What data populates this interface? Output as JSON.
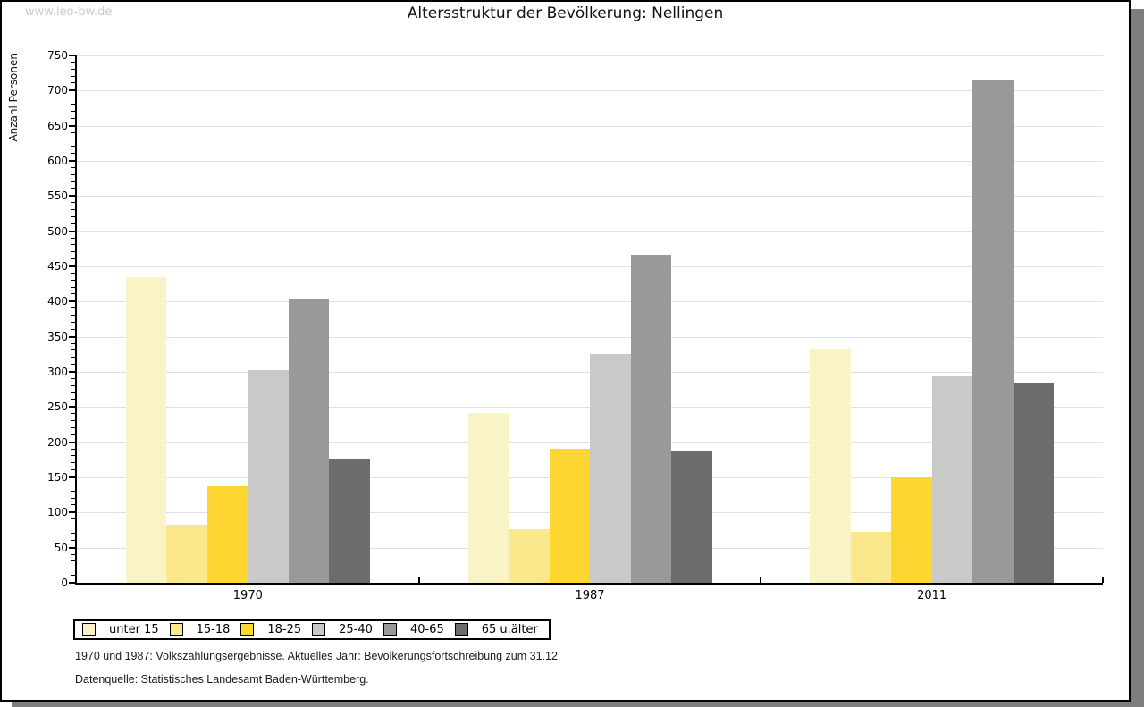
{
  "watermark": "www.leo-bw.de",
  "header": {
    "title": "Altersstruktur der Bevölkerung: Nellingen"
  },
  "chart_data": {
    "type": "bar",
    "title": "Altersstruktur der Bevölkerung: Nellingen",
    "xlabel": "",
    "ylabel": "Anzahl Personen",
    "ylim": [
      0,
      750
    ],
    "ytick_step": 50,
    "ytick_minor_step": 10,
    "grid": true,
    "legend_position": "bottom-left",
    "categories": [
      "1970",
      "1987",
      "2011"
    ],
    "series": [
      {
        "name": "unter 15",
        "color": "#FAF3C5",
        "values": [
          435,
          242,
          333
        ]
      },
      {
        "name": "15-18",
        "color": "#FCE88C",
        "values": [
          83,
          76,
          72
        ]
      },
      {
        "name": "18-25",
        "color": "#FDD631",
        "values": [
          137,
          191,
          150
        ]
      },
      {
        "name": "25-40",
        "color": "#C9C9C9",
        "values": [
          302,
          326,
          294
        ]
      },
      {
        "name": "40-65",
        "color": "#999999",
        "values": [
          404,
          466,
          715
        ]
      },
      {
        "name": "65 u.älter",
        "color": "#6C6C6C",
        "values": [
          175,
          187,
          283
        ]
      }
    ]
  },
  "footnotes": {
    "line1": "1970 und 1987: Volkszählungsergebnisse. Aktuelles Jahr: Bevölkerungsfortschreibung zum 31.12.",
    "line2": "Datenquelle: Statistisches Landesamt Baden-Württemberg."
  },
  "colors": {
    "shadow": "#7E7E7E",
    "grid": "#E0E0E0",
    "axis": "#000000",
    "watermark": "#C9C9D1"
  }
}
